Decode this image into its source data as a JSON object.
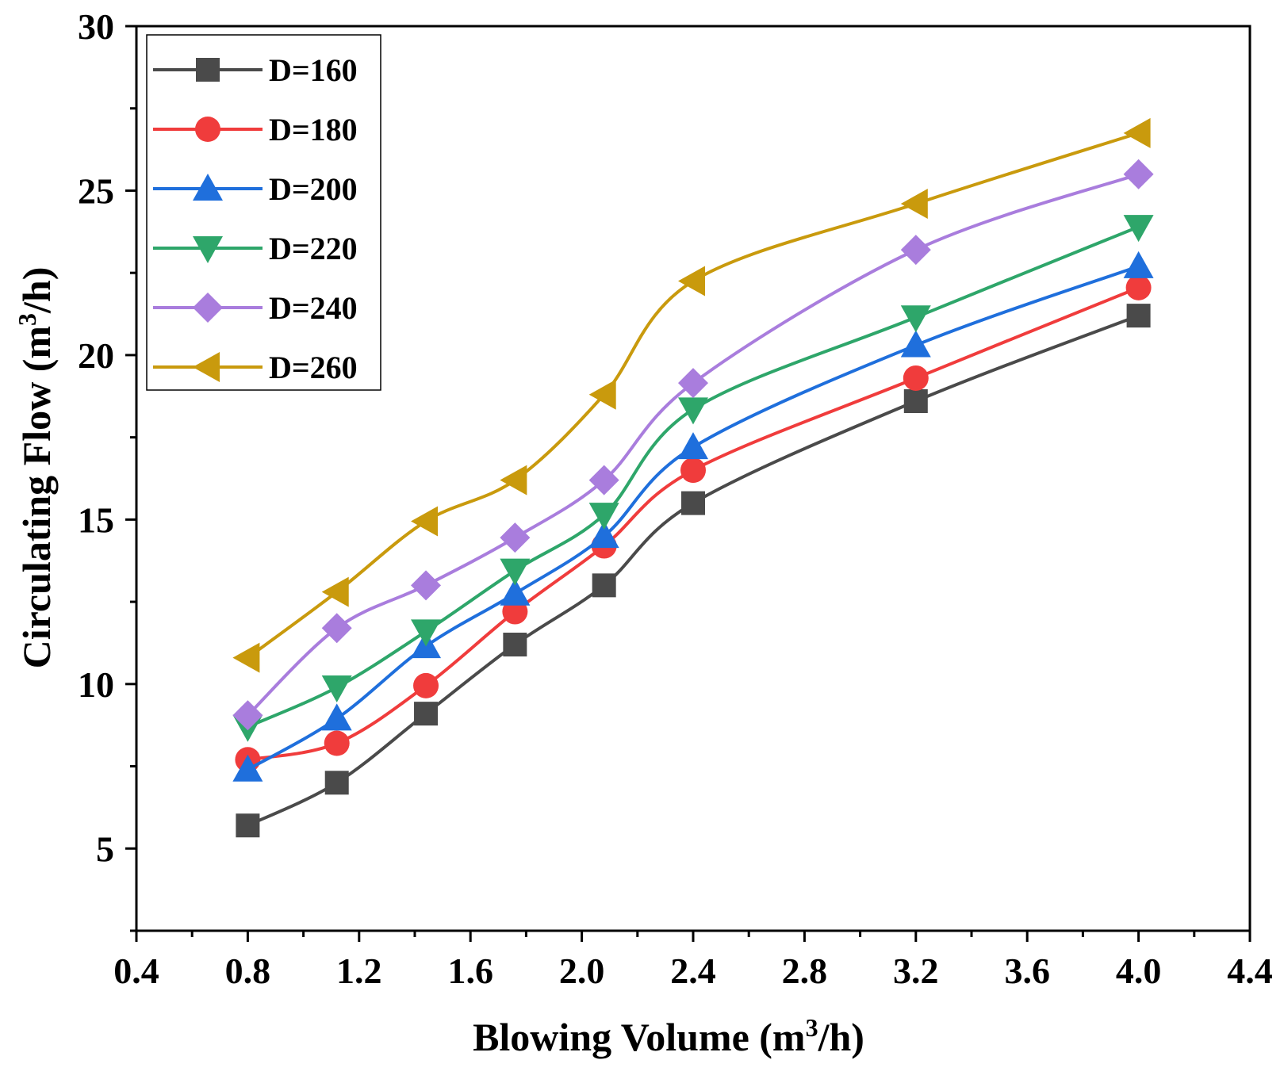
{
  "chart_data": {
    "type": "line",
    "title": "",
    "xlabel": {
      "prefix": "Blowing Volume (m",
      "sup": "3",
      "suffix": "/h)"
    },
    "ylabel": {
      "prefix": "Circulating Flow (m",
      "sup": "3",
      "suffix": "/h)"
    },
    "xlim": [
      0.4,
      4.4
    ],
    "ylim": [
      2.5,
      30
    ],
    "xticks": [
      "0.4",
      "0.8",
      "1.2",
      "1.6",
      "2.0",
      "2.4",
      "2.8",
      "3.2",
      "3.6",
      "4.0",
      "4.4"
    ],
    "yticks": [
      "5",
      "10",
      "15",
      "20",
      "25",
      "30"
    ],
    "x": [
      0.8,
      1.12,
      1.44,
      1.76,
      2.08,
      2.4,
      3.2,
      4.0
    ],
    "legend_position": "top-left",
    "grid": false,
    "series": [
      {
        "name": "D=160",
        "color": "#4a4a4a",
        "marker": "square",
        "values": [
          5.7,
          7.0,
          9.1,
          11.2,
          13.0,
          15.5,
          18.6,
          21.2
        ]
      },
      {
        "name": "D=180",
        "color": "#f03c3c",
        "marker": "circle",
        "values": [
          7.7,
          8.2,
          9.95,
          12.2,
          14.2,
          16.5,
          19.3,
          22.05
        ]
      },
      {
        "name": "D=200",
        "color": "#1f6fdc",
        "marker": "triangle-up",
        "values": [
          7.4,
          8.95,
          11.15,
          12.75,
          14.5,
          17.2,
          20.3,
          22.7
        ]
      },
      {
        "name": "D=220",
        "color": "#2ea66a",
        "marker": "triangle-down",
        "values": [
          8.7,
          9.9,
          11.6,
          13.45,
          15.15,
          18.35,
          21.15,
          23.9
        ]
      },
      {
        "name": "D=240",
        "color": "#a97ddd",
        "marker": "diamond",
        "values": [
          9.05,
          11.7,
          13.0,
          14.45,
          16.2,
          19.15,
          23.2,
          25.5
        ]
      },
      {
        "name": "D=260",
        "color": "#c99a0d",
        "marker": "triangle-left",
        "values": [
          10.8,
          12.8,
          14.95,
          16.2,
          18.8,
          22.25,
          24.6,
          26.75
        ]
      }
    ]
  }
}
